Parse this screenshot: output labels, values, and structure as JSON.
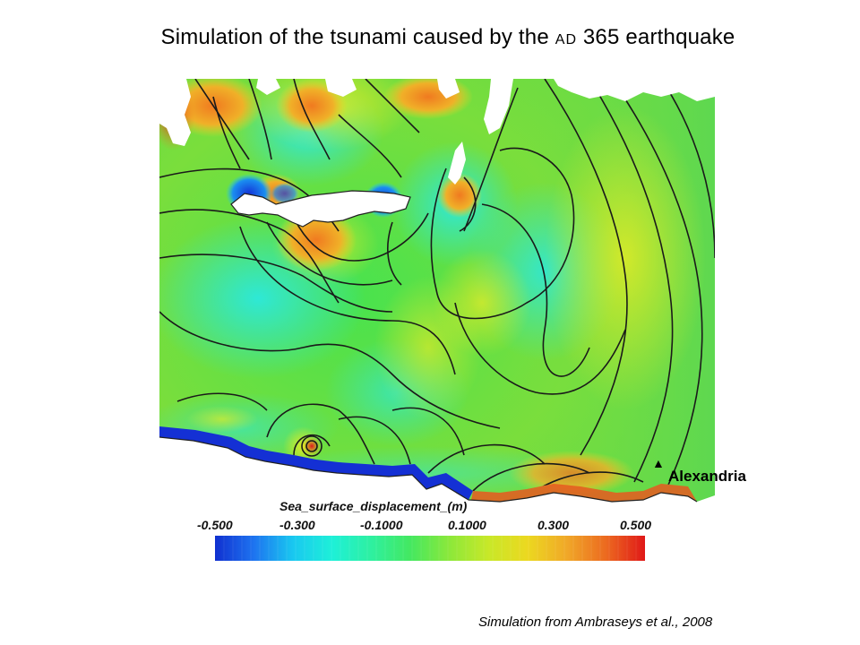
{
  "slide": {
    "title_before": "Simulation of the tsunami caused by the",
    "title_ad": "AD",
    "title_after": "365 earthquake",
    "credit": "Simulation from Ambraseys et al., 2008"
  },
  "map": {
    "city_label": "Alexandria",
    "city_marker": "▲"
  },
  "colorbar": {
    "title": "Sea_surface_displacement_(m)",
    "tick_labels": [
      "-0.500",
      "-0.300",
      "-0.1000",
      "0.1000",
      "0.300",
      "0.500"
    ],
    "range": [
      -0.5,
      0.5
    ],
    "colors": [
      "#1030d0",
      "#1e74f0",
      "#19c8f0",
      "#1ef0d8",
      "#2ef0a0",
      "#44e860",
      "#8ce83a",
      "#c8e828",
      "#ecd820",
      "#f0a828",
      "#ec6a20",
      "#e01818"
    ]
  }
}
